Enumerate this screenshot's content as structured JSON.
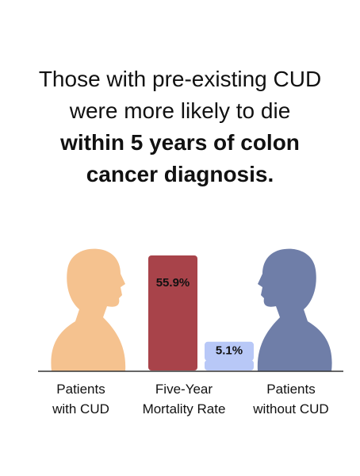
{
  "chart_data": {
    "type": "bar",
    "title_parts": [
      {
        "text": "Those with pre-existing CUD were more likely to die ",
        "bold": false
      },
      {
        "text": "within 5 years of colon cancer diagnosis.",
        "bold": true
      }
    ],
    "x_label": "Five-Year Mortality Rate",
    "categories": [
      "Patients with CUD",
      "Patients without CUD"
    ],
    "values": [
      55.9,
      5.1
    ],
    "value_labels": [
      "55.9%",
      "5.1%"
    ],
    "colors": [
      "#a8434a",
      "#b8c8f7"
    ]
  }
}
